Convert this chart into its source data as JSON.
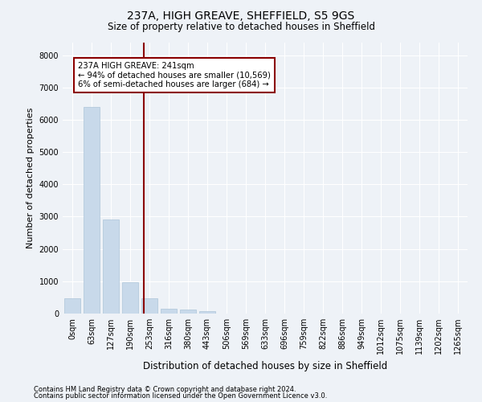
{
  "title1": "237A, HIGH GREAVE, SHEFFIELD, S5 9GS",
  "title2": "Size of property relative to detached houses in Sheffield",
  "xlabel": "Distribution of detached houses by size in Sheffield",
  "ylabel": "Number of detached properties",
  "categories": [
    "0sqm",
    "63sqm",
    "127sqm",
    "190sqm",
    "253sqm",
    "316sqm",
    "380sqm",
    "443sqm",
    "506sqm",
    "569sqm",
    "633sqm",
    "696sqm",
    "759sqm",
    "822sqm",
    "886sqm",
    "949sqm",
    "1012sqm",
    "1075sqm",
    "1139sqm",
    "1202sqm",
    "1265sqm"
  ],
  "bar_heights": [
    480,
    6400,
    2900,
    980,
    480,
    160,
    130,
    80,
    0,
    0,
    0,
    0,
    0,
    0,
    0,
    0,
    0,
    0,
    0,
    0,
    0
  ],
  "bar_color": "#c8d9ea",
  "bar_edge_color": "#adc4d9",
  "vline_x_index": 3.72,
  "vline_color": "#8b0000",
  "annotation_lines": [
    "237A HIGH GREAVE: 241sqm",
    "← 94% of detached houses are smaller (10,569)",
    "6% of semi-detached houses are larger (684) →"
  ],
  "annotation_box_facecolor": "#ffffff",
  "annotation_box_edgecolor": "#8b0000",
  "footnote1": "Contains HM Land Registry data © Crown copyright and database right 2024.",
  "footnote2": "Contains public sector information licensed under the Open Government Licence v3.0.",
  "bg_color": "#eef2f7",
  "ylim": [
    0,
    8400
  ],
  "yticks": [
    0,
    1000,
    2000,
    3000,
    4000,
    5000,
    6000,
    7000,
    8000
  ],
  "grid_color": "#ffffff",
  "title1_fontsize": 10,
  "title2_fontsize": 8.5,
  "ylabel_fontsize": 8,
  "xlabel_fontsize": 8.5,
  "tick_fontsize": 7,
  "footnote_fontsize": 6
}
